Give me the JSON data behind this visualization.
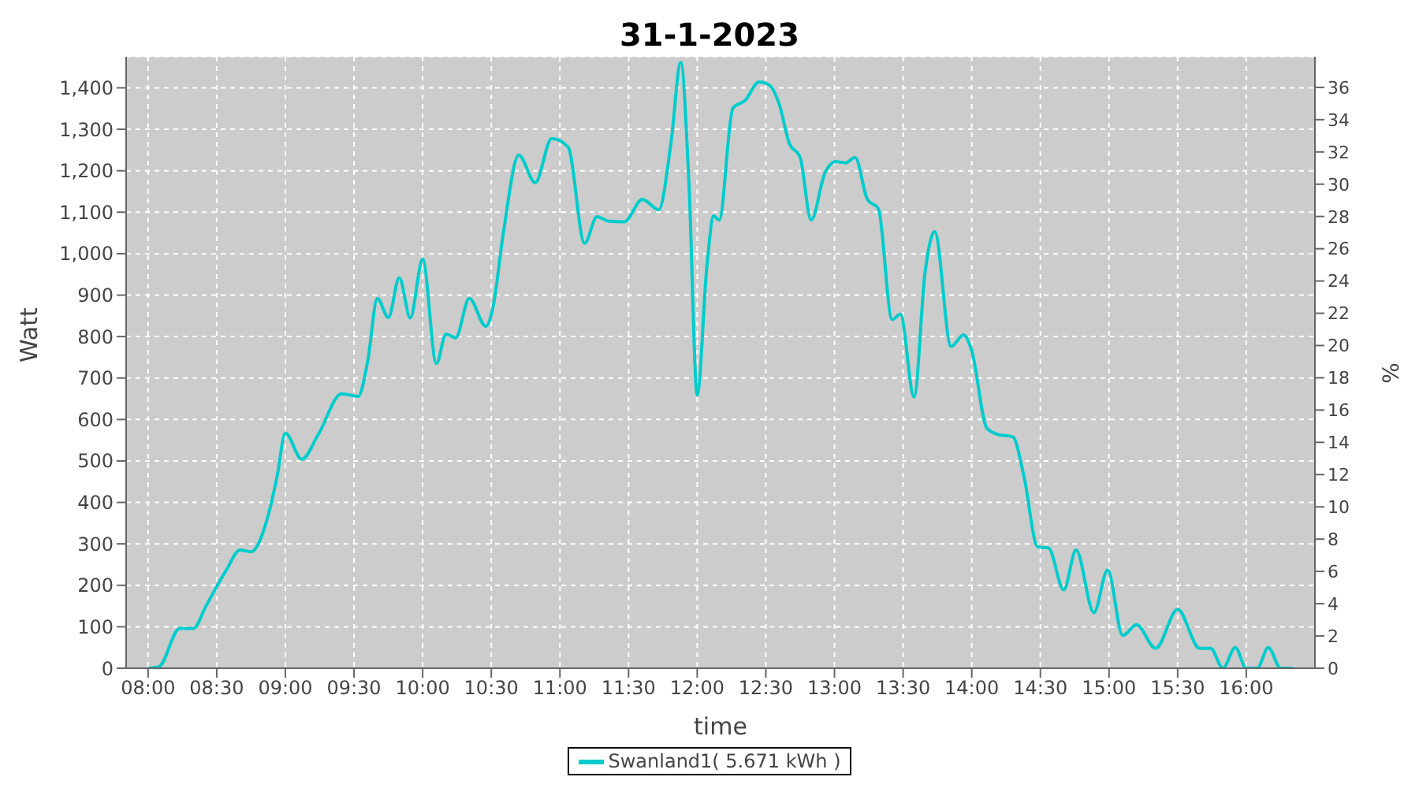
{
  "chart_data": {
    "type": "line",
    "title": "31-1-2023",
    "xlabel": "time",
    "ylabel": "Watt",
    "y2label": "%",
    "x": [
      8.0,
      8.08,
      8.23,
      8.33,
      8.42,
      8.57,
      8.67,
      8.75,
      8.87,
      8.94,
      9.0,
      9.12,
      9.24,
      9.41,
      9.53,
      9.6,
      9.67,
      9.75,
      9.83,
      9.91,
      10.0,
      10.1,
      10.17,
      10.24,
      10.34,
      10.46,
      10.51,
      10.59,
      10.7,
      10.82,
      10.94,
      11.06,
      11.18,
      11.27,
      11.36,
      11.47,
      11.6,
      11.72,
      11.81,
      11.88,
      11.94,
      12.0,
      12.07,
      12.12,
      12.16,
      12.26,
      12.35,
      12.45,
      12.52,
      12.6,
      12.67,
      12.75,
      12.83,
      12.93,
      13.01,
      13.08,
      13.15,
      13.24,
      13.32,
      13.42,
      13.48,
      13.58,
      13.66,
      13.73,
      13.85,
      13.94,
      14.0,
      14.11,
      14.19,
      14.3,
      14.38,
      14.48,
      14.56,
      14.67,
      14.76,
      14.89,
      14.99,
      15.1,
      15.2,
      15.34,
      15.5,
      15.66,
      15.74,
      15.83,
      15.92,
      16.0,
      16.08,
      16.16,
      16.25,
      16.34
    ],
    "series": [
      {
        "name": "Swanland1( 5.671 kWh )",
        "color": "#00cccc",
        "values": [
          0,
          4,
          96,
          96,
          149,
          237,
          285,
          281,
          363,
          463,
          567,
          504,
          564,
          662,
          656,
          741,
          892,
          846,
          942,
          845,
          987,
          735,
          806,
          797,
          892,
          825,
          867,
          1055,
          1238,
          1171,
          1278,
          1257,
          1025,
          1089,
          1078,
          1077,
          1131,
          1106,
          1270,
          1461,
          1169,
          659,
          967,
          1091,
          1081,
          1351,
          1370,
          1414,
          1408,
          1358,
          1267,
          1232,
          1081,
          1194,
          1222,
          1219,
          1232,
          1131,
          1108,
          841,
          854,
          655,
          955,
          1053,
          776,
          804,
          766,
          579,
          564,
          558,
          463,
          293,
          290,
          189,
          285,
          134,
          237,
          79,
          105,
          48,
          142,
          48,
          48,
          0,
          50,
          0,
          0,
          50,
          0,
          0
        ]
      }
    ],
    "xlim": [
      7.84,
      16.5
    ],
    "xticks": [
      {
        "value": 8,
        "label": "08:00"
      },
      {
        "value": 8.5,
        "label": "08:30"
      },
      {
        "value": 9,
        "label": "09:00"
      },
      {
        "value": 9.5,
        "label": "09:30"
      },
      {
        "value": 10,
        "label": "10:00"
      },
      {
        "value": 10.5,
        "label": "10:30"
      },
      {
        "value": 11,
        "label": "11:00"
      },
      {
        "value": 11.5,
        "label": "11:30"
      },
      {
        "value": 12,
        "label": "12:00"
      },
      {
        "value": 12.5,
        "label": "12:30"
      },
      {
        "value": 13,
        "label": "13:00"
      },
      {
        "value": 13.5,
        "label": "13:30"
      },
      {
        "value": 14,
        "label": "14:00"
      },
      {
        "value": 14.5,
        "label": "14:30"
      },
      {
        "value": 15,
        "label": "15:00"
      },
      {
        "value": 15.5,
        "label": "15:30"
      },
      {
        "value": 16,
        "label": "16:00"
      }
    ],
    "ylim": [
      0,
      1475
    ],
    "yticks": [
      0,
      100,
      200,
      300,
      400,
      500,
      600,
      700,
      800,
      900,
      {
        "value": 1000,
        "label": "1,000"
      },
      {
        "value": 1100,
        "label": "1,100"
      },
      {
        "value": 1200,
        "label": "1,200"
      },
      {
        "value": 1300,
        "label": "1,300"
      },
      {
        "value": 1400,
        "label": "1,400"
      }
    ],
    "y2lim": [
      0,
      37.9
    ],
    "y2ticks": [
      0,
      2,
      4,
      6,
      8,
      10,
      12,
      14,
      16,
      18,
      20,
      22,
      24,
      26,
      28,
      30,
      32,
      34,
      36
    ],
    "grid": true,
    "legend": "bottom",
    "marker": "none",
    "line_style": "solid"
  }
}
